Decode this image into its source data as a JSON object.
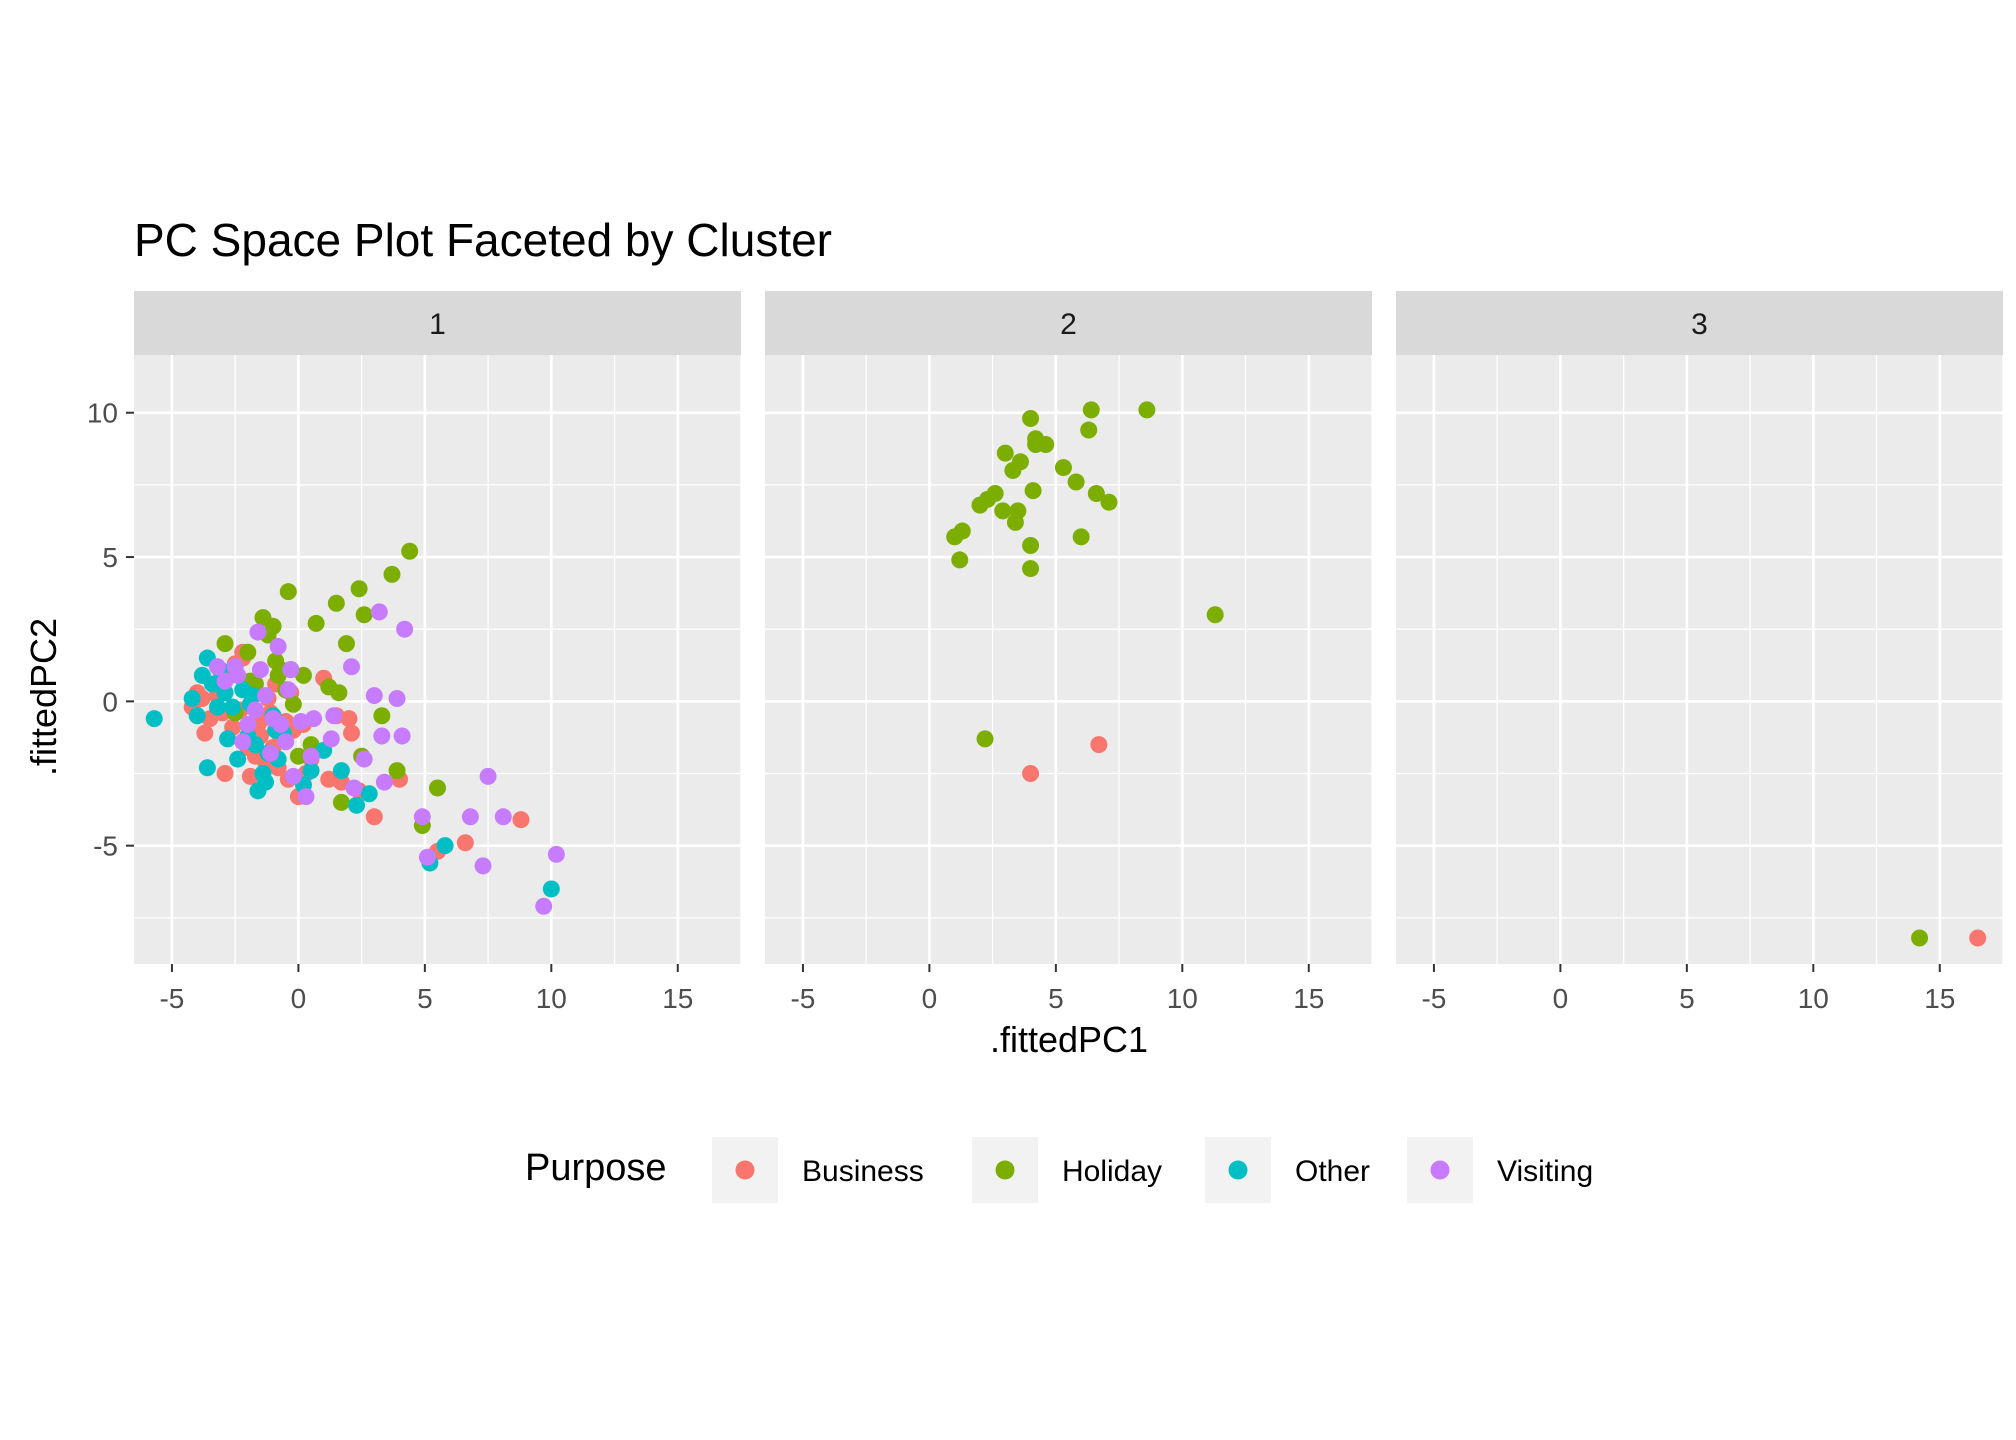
{
  "chart_data": {
    "type": "scatter",
    "title": "PC Space Plot Faceted by Cluster",
    "xlabel": ".fittedPC1",
    "ylabel": ".fittedPC2",
    "xlim": [
      -6.5,
      17.5
    ],
    "ylim": [
      -9.1,
      12.0
    ],
    "x_ticks": [
      -5,
      0,
      5,
      10,
      15
    ],
    "y_ticks": [
      -5,
      0,
      5,
      10
    ],
    "x_tick_labels": [
      "-5",
      "0",
      "5",
      "10",
      "15"
    ],
    "y_tick_labels": [
      "-5",
      "0",
      "5",
      "10"
    ],
    "grid": true,
    "facet_by": "Cluster",
    "facets": [
      "1",
      "2",
      "3"
    ],
    "legend": {
      "title": "Purpose",
      "position": "bottom",
      "entries": [
        {
          "name": "Business",
          "color": "#F8766D"
        },
        {
          "name": "Holiday",
          "color": "#7CAE00"
        },
        {
          "name": "Other",
          "color": "#00BFC4"
        },
        {
          "name": "Visiting",
          "color": "#C77CFF"
        }
      ]
    },
    "panels": [
      {
        "facet": "1",
        "series": [
          {
            "name": "Business",
            "points": [
              [
                -4.2,
                -0.2
              ],
              [
                -4.0,
                0.3
              ],
              [
                -3.8,
                0.1
              ],
              [
                -3.7,
                -1.1
              ],
              [
                -3.5,
                -0.6
              ],
              [
                -3.2,
                0.2
              ],
              [
                -3.0,
                -0.4
              ],
              [
                -2.9,
                -2.5
              ],
              [
                -2.7,
                0.9
              ],
              [
                -2.6,
                -0.9
              ],
              [
                -2.5,
                1.3
              ],
              [
                -2.3,
                -0.3
              ],
              [
                -2.2,
                1.5
              ],
              [
                -2.0,
                -1.6
              ],
              [
                -1.9,
                -2.6
              ],
              [
                -1.8,
                0.5
              ],
              [
                -1.7,
                -1.9
              ],
              [
                -1.6,
                -0.8
              ],
              [
                -1.5,
                -1.2
              ],
              [
                -1.3,
                -2.1
              ],
              [
                -1.2,
                0.1
              ],
              [
                -1.1,
                -0.4
              ],
              [
                -1.0,
                -1.6
              ],
              [
                -0.9,
                0.6
              ],
              [
                -0.8,
                -2.3
              ],
              [
                -0.7,
                -1.3
              ],
              [
                -0.5,
                -0.7
              ],
              [
                -0.4,
                -2.7
              ],
              [
                -0.3,
                0.3
              ],
              [
                -0.2,
                -1.0
              ],
              [
                0.0,
                -3.3
              ],
              [
                0.2,
                -0.8
              ],
              [
                0.5,
                -2.0
              ],
              [
                1.0,
                0.8
              ],
              [
                1.2,
                -2.7
              ],
              [
                1.5,
                -0.5
              ],
              [
                1.7,
                -2.8
              ],
              [
                2.0,
                -0.6
              ],
              [
                2.1,
                -1.1
              ],
              [
                2.4,
                -3.1
              ],
              [
                3.0,
                -4.0
              ],
              [
                4.0,
                -2.7
              ],
              [
                5.5,
                -5.2
              ],
              [
                6.6,
                -4.9
              ],
              [
                8.8,
                -4.1
              ],
              [
                -2.2,
                1.7
              ],
              [
                -1.4,
                -0.6
              ],
              [
                0.3,
                -2.5
              ]
            ]
          },
          {
            "name": "Holiday",
            "points": [
              [
                -2.9,
                2.0
              ],
              [
                -2.5,
                -0.4
              ],
              [
                -2.0,
                1.7
              ],
              [
                -1.7,
                0.6
              ],
              [
                -1.4,
                2.9
              ],
              [
                -1.2,
                2.3
              ],
              [
                -1.0,
                2.6
              ],
              [
                -0.9,
                1.4
              ],
              [
                -0.7,
                1.1
              ],
              [
                -0.5,
                0.4
              ],
              [
                -0.4,
                3.8
              ],
              [
                -0.3,
                1.1
              ],
              [
                -0.2,
                -0.1
              ],
              [
                0.0,
                -1.9
              ],
              [
                0.2,
                0.9
              ],
              [
                0.5,
                -1.5
              ],
              [
                0.7,
                2.7
              ],
              [
                1.2,
                0.5
              ],
              [
                1.5,
                3.4
              ],
              [
                1.6,
                0.3
              ],
              [
                1.7,
                -3.5
              ],
              [
                1.9,
                2.0
              ],
              [
                2.4,
                3.9
              ],
              [
                2.5,
                -1.9
              ],
              [
                2.6,
                3.0
              ],
              [
                3.3,
                -0.5
              ],
              [
                3.7,
                4.4
              ],
              [
                3.9,
                -2.4
              ],
              [
                4.4,
                5.2
              ],
              [
                4.9,
                -4.3
              ],
              [
                5.5,
                -3.0
              ],
              [
                -1.9,
                0.7
              ],
              [
                -0.8,
                0.9
              ]
            ]
          },
          {
            "name": "Other",
            "points": [
              [
                -5.7,
                -0.6
              ],
              [
                -4.2,
                0.1
              ],
              [
                -4.0,
                -0.5
              ],
              [
                -3.8,
                0.9
              ],
              [
                -3.6,
                1.5
              ],
              [
                -3.6,
                -2.3
              ],
              [
                -3.4,
                0.6
              ],
              [
                -3.1,
                1.1
              ],
              [
                -2.9,
                0.3
              ],
              [
                -2.8,
                -1.3
              ],
              [
                -2.6,
                -0.2
              ],
              [
                -2.4,
                -2.0
              ],
              [
                -2.2,
                0.4
              ],
              [
                -2.0,
                -1.2
              ],
              [
                -1.9,
                -0.1
              ],
              [
                -1.7,
                -1.5
              ],
              [
                -1.6,
                -3.1
              ],
              [
                -1.4,
                -2.5
              ],
              [
                -1.3,
                -2.8
              ],
              [
                -1.2,
                -1.8
              ],
              [
                -1.0,
                -0.5
              ],
              [
                -0.8,
                -2.0
              ],
              [
                -0.6,
                -1.1
              ],
              [
                0.2,
                -2.9
              ],
              [
                0.5,
                -2.4
              ],
              [
                1.0,
                -1.7
              ],
              [
                1.7,
                -2.4
              ],
              [
                2.3,
                -3.6
              ],
              [
                2.8,
                -3.2
              ],
              [
                5.2,
                -5.6
              ],
              [
                5.8,
                -5.0
              ],
              [
                10.0,
                -6.5
              ],
              [
                -3.2,
                -0.2
              ],
              [
                -1.8,
                0.2
              ],
              [
                -0.9,
                -1.0
              ]
            ]
          },
          {
            "name": "Visiting",
            "points": [
              [
                -3.2,
                1.2
              ],
              [
                -2.9,
                0.7
              ],
              [
                -2.5,
                1.2
              ],
              [
                -2.2,
                -1.4
              ],
              [
                -2.0,
                -0.8
              ],
              [
                -1.7,
                -0.3
              ],
              [
                -1.6,
                2.4
              ],
              [
                -1.5,
                1.1
              ],
              [
                -1.3,
                0.2
              ],
              [
                -1.1,
                -1.8
              ],
              [
                -1.0,
                -0.6
              ],
              [
                -0.8,
                1.9
              ],
              [
                -0.7,
                -0.8
              ],
              [
                -0.5,
                -1.4
              ],
              [
                -0.3,
                1.1
              ],
              [
                -0.2,
                -2.6
              ],
              [
                0.1,
                -0.7
              ],
              [
                0.3,
                -3.3
              ],
              [
                0.5,
                -1.9
              ],
              [
                0.6,
                -0.6
              ],
              [
                1.3,
                -1.3
              ],
              [
                1.4,
                -0.5
              ],
              [
                2.1,
                1.2
              ],
              [
                2.2,
                -3.0
              ],
              [
                3.0,
                0.2
              ],
              [
                3.2,
                3.1
              ],
              [
                3.3,
                -1.2
              ],
              [
                3.4,
                -2.8
              ],
              [
                3.9,
                0.1
              ],
              [
                4.1,
                -1.2
              ],
              [
                4.2,
                2.5
              ],
              [
                4.9,
                -4.0
              ],
              [
                5.1,
                -5.4
              ],
              [
                6.8,
                -4.0
              ],
              [
                7.3,
                -5.7
              ],
              [
                7.5,
                -2.6
              ],
              [
                8.1,
                -4.0
              ],
              [
                9.7,
                -7.1
              ],
              [
                10.2,
                -5.3
              ],
              [
                -2.4,
                0.9
              ],
              [
                -0.4,
                0.4
              ],
              [
                2.6,
                -2.0
              ]
            ]
          }
        ]
      },
      {
        "facet": "2",
        "series": [
          {
            "name": "Business",
            "points": [
              [
                4.0,
                -2.5
              ],
              [
                6.7,
                -1.5
              ]
            ]
          },
          {
            "name": "Holiday",
            "points": [
              [
                1.0,
                5.7
              ],
              [
                1.2,
                4.9
              ],
              [
                1.3,
                5.9
              ],
              [
                2.0,
                6.8
              ],
              [
                2.2,
                -1.3
              ],
              [
                2.3,
                7.0
              ],
              [
                2.6,
                7.2
              ],
              [
                2.9,
                6.6
              ],
              [
                3.0,
                8.6
              ],
              [
                3.3,
                8.0
              ],
              [
                3.4,
                6.2
              ],
              [
                3.5,
                6.6
              ],
              [
                3.6,
                8.3
              ],
              [
                4.0,
                9.8
              ],
              [
                4.0,
                5.4
              ],
              [
                4.0,
                4.6
              ],
              [
                4.1,
                7.3
              ],
              [
                4.2,
                9.1
              ],
              [
                4.2,
                8.9
              ],
              [
                4.6,
                8.9
              ],
              [
                5.3,
                8.1
              ],
              [
                5.8,
                7.6
              ],
              [
                6.0,
                5.7
              ],
              [
                6.3,
                9.4
              ],
              [
                6.4,
                10.1
              ],
              [
                6.6,
                7.2
              ],
              [
                7.1,
                6.9
              ],
              [
                8.6,
                10.1
              ],
              [
                11.3,
                3.0
              ]
            ]
          },
          {
            "name": "Other",
            "points": []
          },
          {
            "name": "Visiting",
            "points": []
          }
        ]
      },
      {
        "facet": "3",
        "series": [
          {
            "name": "Business",
            "points": [
              [
                16.5,
                -8.2
              ]
            ]
          },
          {
            "name": "Holiday",
            "points": [
              [
                14.2,
                -8.2
              ]
            ]
          },
          {
            "name": "Other",
            "points": []
          },
          {
            "name": "Visiting",
            "points": []
          }
        ]
      }
    ]
  }
}
